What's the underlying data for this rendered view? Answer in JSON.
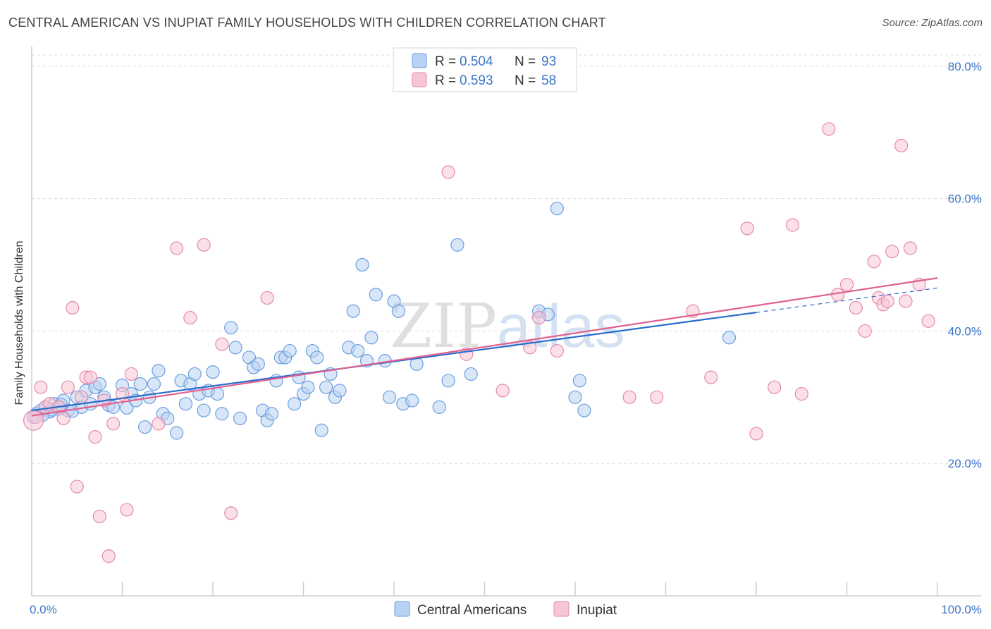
{
  "title": "CENTRAL AMERICAN VS INUPIAT FAMILY HOUSEHOLDS WITH CHILDREN CORRELATION CHART",
  "source": "Source: ZipAtlas.com",
  "watermark": "ZIPatlas",
  "chart_data": {
    "type": "scatter",
    "ylabel": "Family Households with Children",
    "xlim": [
      0,
      100
    ],
    "ylim": [
      0,
      82
    ],
    "x_ticks": [
      "0.0%",
      "100.0%"
    ],
    "y_ticks": [
      {
        "value": 20,
        "label": "20.0%"
      },
      {
        "value": 40,
        "label": "40.0%"
      },
      {
        "value": 60,
        "label": "60.0%"
      },
      {
        "value": 80,
        "label": "80.0%"
      }
    ],
    "grid": true,
    "legend_position": "top-center",
    "legend": [
      {
        "r_label": "R =",
        "r": "0.504",
        "n_label": "N =",
        "n": "93"
      },
      {
        "r_label": "R =",
        "r": "0.593",
        "n_label": "N =",
        "n": "58"
      }
    ],
    "series": [
      {
        "name": "Central Americans",
        "color": "#6a9fe0",
        "fill": "#b9d2f3",
        "line_color": "#2a6ccc",
        "trend": {
          "x0": 0,
          "y0": 28.0,
          "x1": 100,
          "y1": 46.5,
          "solid_until": 80
        },
        "points": [
          [
            0.5,
            27.5
          ],
          [
            1,
            28
          ],
          [
            1.5,
            28.5
          ],
          [
            2,
            27.8
          ],
          [
            2.5,
            29
          ],
          [
            3,
            28.2
          ],
          [
            3.5,
            29.5
          ],
          [
            4,
            28
          ],
          [
            4.5,
            27.9
          ],
          [
            5,
            30
          ],
          [
            5.5,
            28.5
          ],
          [
            6,
            31
          ],
          [
            6.5,
            29
          ],
          [
            7,
            31.5
          ],
          [
            7.5,
            32
          ],
          [
            8,
            30
          ],
          [
            8.5,
            28.8
          ],
          [
            9,
            28.5
          ],
          [
            10,
            31.8
          ],
          [
            10.5,
            28.4
          ],
          [
            11,
            30.5
          ],
          [
            11.5,
            29.5
          ],
          [
            12,
            32
          ],
          [
            12.5,
            25.5
          ],
          [
            13,
            30
          ],
          [
            13.5,
            32
          ],
          [
            14,
            34
          ],
          [
            14.5,
            27.5
          ],
          [
            15,
            26.8
          ],
          [
            16,
            24.6
          ],
          [
            16.5,
            32.5
          ],
          [
            17,
            29
          ],
          [
            17.5,
            32
          ],
          [
            18,
            33.5
          ],
          [
            18.5,
            30.5
          ],
          [
            19,
            28
          ],
          [
            19.5,
            31
          ],
          [
            20,
            33.8
          ],
          [
            20.5,
            30.5
          ],
          [
            21,
            27.5
          ],
          [
            22,
            40.5
          ],
          [
            22.5,
            37.5
          ],
          [
            23,
            26.8
          ],
          [
            24,
            36
          ],
          [
            24.5,
            34.5
          ],
          [
            25,
            35
          ],
          [
            25.5,
            28
          ],
          [
            26,
            26.5
          ],
          [
            26.5,
            27.5
          ],
          [
            27,
            32.5
          ],
          [
            27.5,
            36
          ],
          [
            28,
            36
          ],
          [
            28.5,
            37
          ],
          [
            29,
            29
          ],
          [
            29.5,
            33
          ],
          [
            30,
            30.5
          ],
          [
            30.5,
            31.5
          ],
          [
            31,
            37
          ],
          [
            31.5,
            36
          ],
          [
            32,
            25
          ],
          [
            32.5,
            31.5
          ],
          [
            33,
            33.5
          ],
          [
            33.5,
            30
          ],
          [
            34,
            31
          ],
          [
            35,
            37.5
          ],
          [
            35.5,
            43
          ],
          [
            36,
            37
          ],
          [
            36.5,
            50
          ],
          [
            37,
            35.5
          ],
          [
            37.5,
            39
          ],
          [
            38,
            45.5
          ],
          [
            39,
            35.5
          ],
          [
            39.5,
            30
          ],
          [
            40,
            44.5
          ],
          [
            40.5,
            43
          ],
          [
            41,
            29
          ],
          [
            42,
            29.5
          ],
          [
            42.5,
            35
          ],
          [
            45,
            28.5
          ],
          [
            46,
            32.5
          ],
          [
            47,
            53
          ],
          [
            48.5,
            33.5
          ],
          [
            56,
            43
          ],
          [
            57,
            42.5
          ],
          [
            58,
            58.5
          ],
          [
            60,
            30
          ],
          [
            60.5,
            32.5
          ],
          [
            61,
            28
          ],
          [
            77,
            39
          ],
          [
            0.2,
            27
          ],
          [
            1.2,
            27.3
          ],
          [
            2.2,
            28.1
          ],
          [
            3.2,
            28.9
          ]
        ]
      },
      {
        "name": "Inupiat",
        "color": "#e58aaa",
        "fill": "#f7c6d6",
        "line_color": "#e0608e",
        "trend": {
          "x0": 0,
          "y0": 27.2,
          "x1": 100,
          "y1": 48.0,
          "solid_until": 100
        },
        "points": [
          [
            0.5,
            27
          ],
          [
            1,
            31.5
          ],
          [
            1.5,
            28.5
          ],
          [
            2,
            29
          ],
          [
            3,
            28.5
          ],
          [
            3.5,
            26.8
          ],
          [
            4,
            31.5
          ],
          [
            4.5,
            43.5
          ],
          [
            5,
            16.5
          ],
          [
            5.5,
            30
          ],
          [
            6,
            33
          ],
          [
            6.5,
            33
          ],
          [
            7,
            24
          ],
          [
            7.5,
            12
          ],
          [
            8,
            29.5
          ],
          [
            8.5,
            6
          ],
          [
            9,
            26
          ],
          [
            10,
            30.5
          ],
          [
            10.5,
            13
          ],
          [
            11,
            33.5
          ],
          [
            14,
            26
          ],
          [
            16,
            52.5
          ],
          [
            17.5,
            42
          ],
          [
            19,
            53
          ],
          [
            21,
            38
          ],
          [
            22,
            12.5
          ],
          [
            26,
            45
          ],
          [
            46,
            64
          ],
          [
            48,
            36.5
          ],
          [
            52,
            31
          ],
          [
            55,
            37.5
          ],
          [
            56,
            42
          ],
          [
            58,
            37
          ],
          [
            66,
            30
          ],
          [
            69,
            30
          ],
          [
            73,
            43
          ],
          [
            75,
            33
          ],
          [
            79,
            55.5
          ],
          [
            80,
            24.5
          ],
          [
            82,
            31.5
          ],
          [
            84,
            56
          ],
          [
            85,
            30.5
          ],
          [
            88,
            70.5
          ],
          [
            89,
            45.5
          ],
          [
            90,
            47
          ],
          [
            91,
            43.5
          ],
          [
            92,
            40
          ],
          [
            93,
            50.5
          ],
          [
            93.5,
            45
          ],
          [
            94,
            44
          ],
          [
            94.5,
            44.5
          ],
          [
            95,
            52
          ],
          [
            96,
            68
          ],
          [
            96.5,
            44.5
          ],
          [
            97,
            52.5
          ],
          [
            98,
            47
          ],
          [
            99,
            41.5
          ],
          [
            0.2,
            26.5
          ]
        ]
      }
    ]
  }
}
